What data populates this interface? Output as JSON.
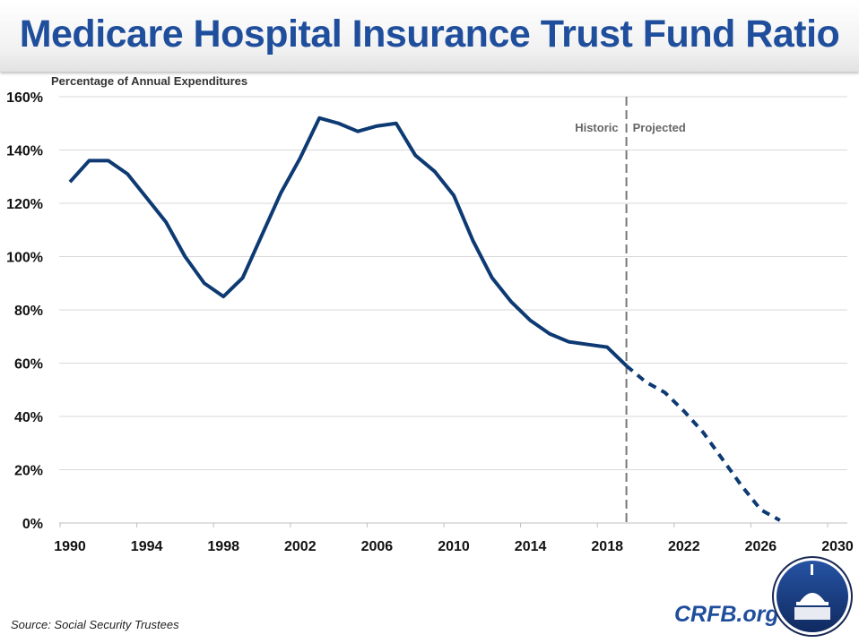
{
  "title": "Medicare Hospital Insurance Trust Fund Ratio",
  "source": "Source: Social Security Trustees",
  "brand": "CRFB.org",
  "colors": {
    "line": "#0d3a73",
    "title": "#1f4e9c",
    "divider": "#777777",
    "grid": "#d9d9d9"
  },
  "chart_data": {
    "type": "line",
    "title": "Medicare Hospital Insurance Trust Fund Ratio",
    "ylabel": "Percentage of Annual Expenditures",
    "xlabel": "",
    "xlim": [
      1990,
      2030
    ],
    "ylim": [
      0,
      160
    ],
    "x_ticks": [
      "1990",
      "1994",
      "1998",
      "2002",
      "2006",
      "2010",
      "2014",
      "2018",
      "2022",
      "2026",
      "2030"
    ],
    "y_ticks": [
      "0%",
      "20%",
      "40%",
      "60%",
      "80%",
      "100%",
      "120%",
      "140%",
      "160%"
    ],
    "grid": true,
    "annotations": {
      "historic": "Historic",
      "projected": "Projected",
      "divider_year": 2019
    },
    "series": [
      {
        "style": "solid",
        "x": [
          1990,
          1991,
          1992,
          1993,
          1994,
          1995,
          1996,
          1997,
          1998,
          1999,
          2000,
          2001,
          2002,
          2003,
          2004,
          2005,
          2006,
          2007,
          2008,
          2009,
          2010,
          2011,
          2012,
          2013,
          2014,
          2015,
          2016,
          2017,
          2018,
          2019
        ],
        "values": [
          128,
          136,
          136,
          131,
          122,
          113,
          100,
          90,
          85,
          92,
          108,
          124,
          137,
          152,
          150,
          147,
          149,
          150,
          138,
          132,
          123,
          106,
          92,
          83,
          76,
          71,
          68,
          67,
          66,
          59
        ]
      },
      {
        "style": "dashed",
        "x": [
          2019,
          2020,
          2021,
          2022,
          2023,
          2024,
          2025,
          2026,
          2027
        ],
        "values": [
          59,
          53,
          49,
          42,
          34,
          24,
          14,
          5,
          1
        ]
      }
    ]
  }
}
